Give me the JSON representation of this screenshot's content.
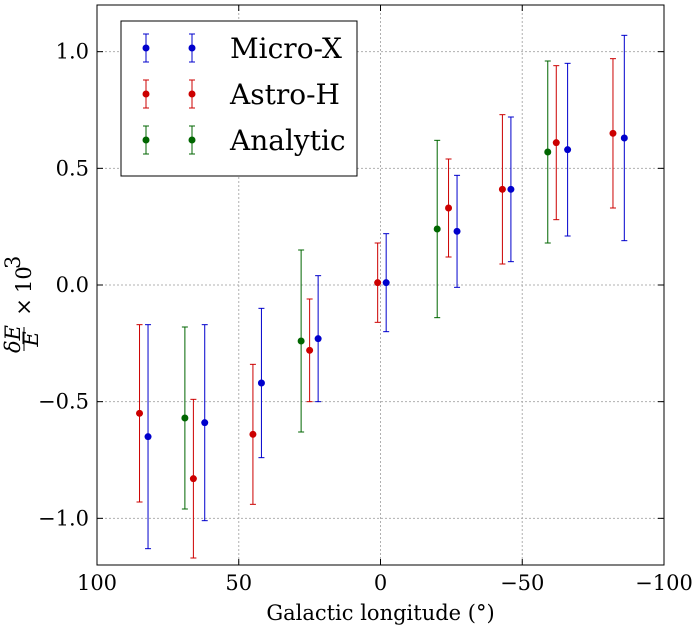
{
  "chart_data": {
    "type": "scatter",
    "title": "",
    "xlabel": "Galactic longitude (°)",
    "ylabel_parts": {
      "num": "δE",
      "den": "E",
      "times": "×",
      "base": "10",
      "exp": "3"
    },
    "xlim": [
      100,
      -100
    ],
    "ylim": [
      -1.2,
      1.2
    ],
    "x_reversed": true,
    "grid": true,
    "legend_position": "top-left",
    "xticks": [
      100,
      50,
      0,
      -50,
      -100
    ],
    "xtick_labels": [
      "100",
      "50",
      "0",
      "−50",
      "−100"
    ],
    "yticks": [
      1.0,
      0.5,
      0.0,
      -0.5,
      -1.0
    ],
    "ytick_labels": [
      "1.0",
      "0.5",
      "0.0",
      "−0.5",
      "−1.0"
    ],
    "series": [
      {
        "name": "Micro-X",
        "color": "#0000cc",
        "points": [
          {
            "x": 82,
            "y": -0.65,
            "yerr": 0.48
          },
          {
            "x": 62,
            "y": -0.59,
            "yerr": 0.42
          },
          {
            "x": 42,
            "y": -0.42,
            "yerr": 0.32
          },
          {
            "x": 22,
            "y": -0.23,
            "yerr": 0.27
          },
          {
            "x": -2,
            "y": 0.01,
            "yerr": 0.21
          },
          {
            "x": -27,
            "y": 0.23,
            "yerr": 0.24
          },
          {
            "x": -46,
            "y": 0.41,
            "yerr": 0.31
          },
          {
            "x": -66,
            "y": 0.58,
            "yerr": 0.37
          },
          {
            "x": -86,
            "y": 0.63,
            "yerr": 0.44
          }
        ]
      },
      {
        "name": "Astro-H",
        "color": "#cc0000",
        "points": [
          {
            "x": 85,
            "y": -0.55,
            "yerr": 0.38
          },
          {
            "x": 66,
            "y": -0.83,
            "yerr": 0.34
          },
          {
            "x": 45,
            "y": -0.64,
            "yerr": 0.3
          },
          {
            "x": 25,
            "y": -0.28,
            "yerr": 0.22
          },
          {
            "x": 1,
            "y": 0.01,
            "yerr": 0.17
          },
          {
            "x": -24,
            "y": 0.33,
            "yerr": 0.21
          },
          {
            "x": -43,
            "y": 0.41,
            "yerr": 0.32
          },
          {
            "x": -62,
            "y": 0.61,
            "yerr": 0.33
          },
          {
            "x": -82,
            "y": 0.65,
            "yerr": 0.32
          }
        ]
      },
      {
        "name": "Analytic",
        "color": "#006600",
        "points": [
          {
            "x": 69,
            "y": -0.57,
            "yerr": 0.39
          },
          {
            "x": 28,
            "y": -0.24,
            "yerr": 0.39
          },
          {
            "x": -20,
            "y": 0.24,
            "yerr": 0.38
          },
          {
            "x": -59,
            "y": 0.57,
            "yerr": 0.39
          }
        ]
      }
    ]
  }
}
